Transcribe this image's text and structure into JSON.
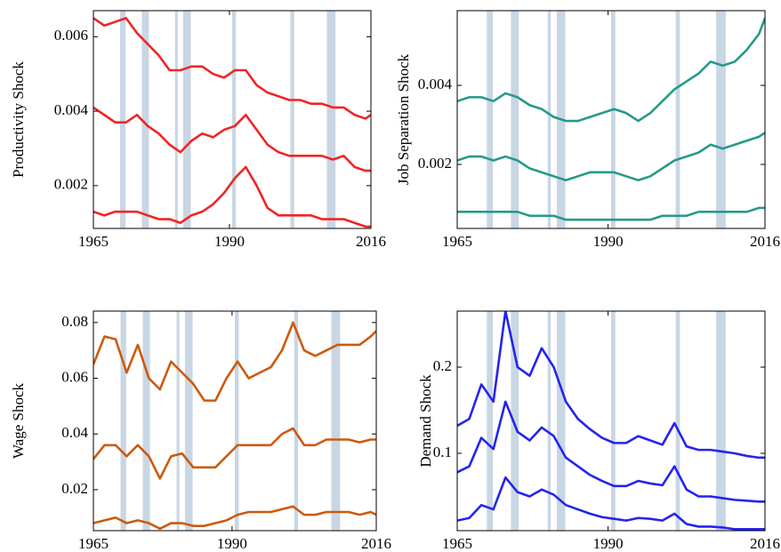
{
  "chart_data": [
    {
      "type": "line",
      "ylabel": "Productivity Shock",
      "x": [
        1965,
        1967,
        1969,
        1971,
        1973,
        1975,
        1977,
        1979,
        1981,
        1983,
        1985,
        1987,
        1989,
        1991,
        1993,
        1995,
        1997,
        1999,
        2001,
        2003,
        2005,
        2007,
        2009,
        2011,
        2013,
        2015,
        2016
      ],
      "series": [
        {
          "color": "#f22424",
          "values": [
            0.0065,
            0.0063,
            0.0064,
            0.0065,
            0.0061,
            0.0058,
            0.0055,
            0.0051,
            0.0051,
            0.0052,
            0.0052,
            0.005,
            0.0049,
            0.0051,
            0.0051,
            0.0047,
            0.0045,
            0.0044,
            0.0043,
            0.0043,
            0.0042,
            0.0042,
            0.0041,
            0.0041,
            0.0039,
            0.0038,
            0.0039
          ]
        },
        {
          "color": "#f22424",
          "values": [
            0.0041,
            0.0039,
            0.0037,
            0.0037,
            0.0039,
            0.0036,
            0.0034,
            0.0031,
            0.0029,
            0.0032,
            0.0034,
            0.0033,
            0.0035,
            0.0036,
            0.0039,
            0.0035,
            0.0031,
            0.0029,
            0.0028,
            0.0028,
            0.0028,
            0.0028,
            0.0027,
            0.0028,
            0.0025,
            0.0024,
            0.0024
          ]
        },
        {
          "color": "#f22424",
          "values": [
            0.0013,
            0.0012,
            0.0013,
            0.0013,
            0.0013,
            0.0012,
            0.0011,
            0.0011,
            0.001,
            0.0012,
            0.0013,
            0.0015,
            0.0018,
            0.0022,
            0.0025,
            0.002,
            0.0014,
            0.0012,
            0.0012,
            0.0012,
            0.0012,
            0.0011,
            0.0011,
            0.0011,
            0.001,
            0.0009,
            0.0009
          ]
        }
      ],
      "xlim": [
        1965,
        2016
      ],
      "ylim": [
        0.00085,
        0.0067
      ],
      "xticks": [
        1965,
        1990,
        2016
      ],
      "yticks": [
        0.002,
        0.004,
        0.006
      ],
      "recessions": [
        [
          1969.9,
          1970.9
        ],
        [
          1973.9,
          1975.2
        ],
        [
          1980.0,
          1980.5
        ],
        [
          1981.5,
          1982.9
        ],
        [
          1990.5,
          1991.2
        ],
        [
          2001.2,
          2001.9
        ],
        [
          2007.9,
          2009.5
        ]
      ],
      "recession_color": "#c9d6e3"
    },
    {
      "type": "line",
      "ylabel": "Job Separation Shock",
      "x": [
        1965,
        1967,
        1969,
        1971,
        1973,
        1975,
        1977,
        1979,
        1981,
        1983,
        1985,
        1987,
        1989,
        1991,
        1993,
        1995,
        1997,
        1999,
        2001,
        2003,
        2005,
        2007,
        2009,
        2011,
        2013,
        2015,
        2016
      ],
      "series": [
        {
          "color": "#26998a",
          "values": [
            0.0036,
            0.0037,
            0.0037,
            0.0036,
            0.0038,
            0.0037,
            0.0035,
            0.0034,
            0.0032,
            0.0031,
            0.0031,
            0.0032,
            0.0033,
            0.0034,
            0.0033,
            0.0031,
            0.0033,
            0.0036,
            0.0039,
            0.0041,
            0.0043,
            0.0046,
            0.0045,
            0.0046,
            0.0049,
            0.0053,
            0.0057
          ]
        },
        {
          "color": "#26998a",
          "values": [
            0.0021,
            0.0022,
            0.0022,
            0.0021,
            0.0022,
            0.0021,
            0.0019,
            0.0018,
            0.0017,
            0.0016,
            0.0017,
            0.0018,
            0.0018,
            0.0018,
            0.0017,
            0.0016,
            0.0017,
            0.0019,
            0.0021,
            0.0022,
            0.0023,
            0.0025,
            0.0024,
            0.0025,
            0.0026,
            0.0027,
            0.0028
          ]
        },
        {
          "color": "#26998a",
          "values": [
            0.0008,
            0.0008,
            0.0008,
            0.0008,
            0.0008,
            0.0008,
            0.0007,
            0.0007,
            0.0007,
            0.0006,
            0.0006,
            0.0006,
            0.0006,
            0.0006,
            0.0006,
            0.0006,
            0.0006,
            0.0007,
            0.0007,
            0.0007,
            0.0008,
            0.0008,
            0.0008,
            0.0008,
            0.0008,
            0.0009,
            0.0009
          ]
        }
      ],
      "xlim": [
        1965,
        2016
      ],
      "ylim": [
        0.00038,
        0.00589
      ],
      "xticks": [
        1965,
        1990,
        2016
      ],
      "yticks": [
        0.002,
        0.004
      ],
      "recessions": [
        [
          1969.9,
          1970.9
        ],
        [
          1973.9,
          1975.2
        ],
        [
          1980.0,
          1980.5
        ],
        [
          1981.5,
          1982.9
        ],
        [
          1990.5,
          1991.2
        ],
        [
          2001.2,
          2001.9
        ],
        [
          2007.9,
          2009.5
        ]
      ],
      "recession_color": "#c9d6e3"
    },
    {
      "type": "line",
      "ylabel": "Wage Shock",
      "x": [
        1965,
        1967,
        1969,
        1971,
        1973,
        1975,
        1977,
        1979,
        1981,
        1983,
        1985,
        1987,
        1989,
        1991,
        1993,
        1995,
        1997,
        1999,
        2001,
        2003,
        2005,
        2007,
        2009,
        2011,
        2013,
        2015,
        2016
      ],
      "series": [
        {
          "color": "#cc5a0e",
          "values": [
            0.065,
            0.075,
            0.074,
            0.062,
            0.072,
            0.06,
            0.056,
            0.066,
            0.062,
            0.058,
            0.052,
            0.052,
            0.06,
            0.066,
            0.06,
            0.062,
            0.064,
            0.07,
            0.08,
            0.07,
            0.068,
            0.07,
            0.072,
            0.072,
            0.072,
            0.075,
            0.077
          ]
        },
        {
          "color": "#cc5a0e",
          "values": [
            0.031,
            0.036,
            0.036,
            0.032,
            0.036,
            0.032,
            0.024,
            0.032,
            0.033,
            0.028,
            0.028,
            0.028,
            0.032,
            0.036,
            0.036,
            0.036,
            0.036,
            0.04,
            0.042,
            0.036,
            0.036,
            0.038,
            0.038,
            0.038,
            0.037,
            0.038,
            0.038
          ]
        },
        {
          "color": "#cc5a0e",
          "values": [
            0.008,
            0.009,
            0.01,
            0.008,
            0.009,
            0.008,
            0.006,
            0.008,
            0.008,
            0.007,
            0.007,
            0.008,
            0.009,
            0.011,
            0.012,
            0.012,
            0.012,
            0.013,
            0.014,
            0.011,
            0.011,
            0.012,
            0.012,
            0.012,
            0.011,
            0.012,
            0.011
          ]
        }
      ],
      "xlim": [
        1965,
        2016
      ],
      "ylim": [
        0.0053,
        0.0841
      ],
      "xticks": [
        1965,
        1990,
        2016
      ],
      "yticks": [
        0.02,
        0.04,
        0.06,
        0.08
      ],
      "recessions": [
        [
          1969.9,
          1970.9
        ],
        [
          1973.9,
          1975.2
        ],
        [
          1980.0,
          1980.5
        ],
        [
          1981.5,
          1982.9
        ],
        [
          1990.5,
          1991.2
        ],
        [
          2001.2,
          2001.9
        ],
        [
          2007.9,
          2009.5
        ]
      ],
      "recession_color": "#c9d6e3"
    },
    {
      "type": "line",
      "ylabel": "Demand Shock",
      "x": [
        1965,
        1967,
        1969,
        1971,
        1973,
        1975,
        1977,
        1979,
        1981,
        1983,
        1985,
        1987,
        1989,
        1991,
        1993,
        1995,
        1997,
        1999,
        2001,
        2003,
        2005,
        2007,
        2009,
        2011,
        2013,
        2015,
        2016
      ],
      "series": [
        {
          "color": "#2424ee",
          "values": [
            0.132,
            0.14,
            0.18,
            0.16,
            0.265,
            0.2,
            0.19,
            0.222,
            0.2,
            0.16,
            0.14,
            0.128,
            0.118,
            0.112,
            0.112,
            0.12,
            0.115,
            0.11,
            0.135,
            0.108,
            0.104,
            0.104,
            0.102,
            0.1,
            0.097,
            0.095,
            0.095
          ]
        },
        {
          "color": "#2424ee",
          "values": [
            0.078,
            0.085,
            0.118,
            0.105,
            0.16,
            0.125,
            0.115,
            0.13,
            0.12,
            0.095,
            0.085,
            0.075,
            0.068,
            0.062,
            0.062,
            0.068,
            0.065,
            0.063,
            0.085,
            0.058,
            0.05,
            0.05,
            0.048,
            0.046,
            0.045,
            0.044,
            0.044
          ]
        },
        {
          "color": "#2424ee",
          "values": [
            0.022,
            0.025,
            0.04,
            0.035,
            0.072,
            0.055,
            0.05,
            0.058,
            0.052,
            0.04,
            0.035,
            0.03,
            0.026,
            0.024,
            0.022,
            0.025,
            0.024,
            0.022,
            0.03,
            0.018,
            0.015,
            0.015,
            0.014,
            0.012,
            0.012,
            0.012,
            0.012
          ]
        }
      ],
      "xlim": [
        1965,
        2016
      ],
      "ylim": [
        0.0103,
        0.265
      ],
      "xticks": [
        1965,
        1990,
        2016
      ],
      "yticks": [
        0.1,
        0.2
      ],
      "recessions": [
        [
          1969.9,
          1970.9
        ],
        [
          1973.9,
          1975.2
        ],
        [
          1980.0,
          1980.5
        ],
        [
          1981.5,
          1982.9
        ],
        [
          1990.5,
          1991.2
        ],
        [
          2001.2,
          2001.9
        ],
        [
          2007.9,
          2009.5
        ]
      ],
      "recession_color": "#c9d6e3"
    }
  ]
}
